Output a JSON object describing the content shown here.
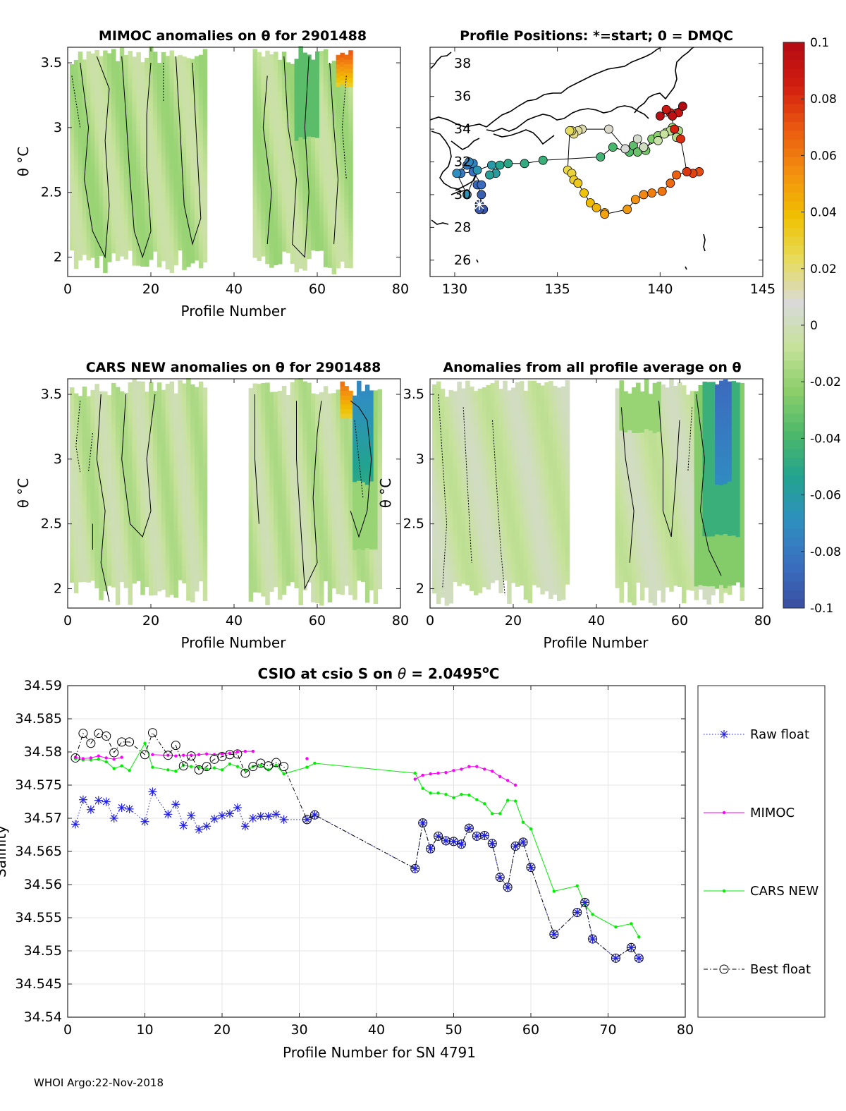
{
  "footer": "WHOI Argo:22-Nov-2018",
  "colors": {
    "raw": "#2020e0",
    "mimoc": "#ff00ff",
    "cars": "#00ee00",
    "best": "#000000",
    "colormap": [
      "#3b4fa0",
      "#3a6fc0",
      "#2f8fc0",
      "#22a38f",
      "#4db86a",
      "#8ccf6a",
      "#c6e29a",
      "#d9d9d9",
      "#e6dc5c",
      "#f0c000",
      "#f39010",
      "#ea5a10",
      "#d21e10",
      "#b40a14"
    ]
  },
  "chart_data": [
    {
      "id": "mimoc",
      "type": "heatmap",
      "title": "MIMOC anomalies on θ  for 2901488",
      "xlabel": "Profile Number",
      "ylabel": "θ °C",
      "xlim": [
        0,
        80
      ],
      "ylim": [
        1.85,
        3.62
      ],
      "xticks": [
        "0",
        "20",
        "40",
        "60",
        "80"
      ],
      "yticks": [
        "2",
        "2.5",
        "3",
        "3.5"
      ],
      "profile_ranges": [
        [
          1,
          33
        ],
        [
          45,
          68
        ]
      ]
    },
    {
      "id": "positions",
      "type": "scatter",
      "title": "Profile Positions: *=start; 0 = DMQC",
      "xlim": [
        128.8,
        145
      ],
      "ylim": [
        25,
        39
      ],
      "xticks": [
        "130",
        "135",
        "140",
        "145"
      ],
      "yticks": [
        "26",
        "28",
        "30",
        "32",
        "34",
        "36",
        "38"
      ],
      "lon": [
        131.2,
        131.4,
        131.2,
        131.3,
        131.1,
        131.3,
        130.9,
        130.3,
        130.6,
        130.9,
        130.7,
        130.1,
        130.6,
        131.1,
        131.8,
        132.0,
        131.7,
        132.2,
        132.6,
        133.4,
        134.3,
        137.1,
        137.7,
        138.5,
        138.7,
        138.9,
        139.3,
        139.6,
        139.9,
        140.3,
        140.6,
        140.9,
        140.8,
        140.5,
        140.2,
        139.9,
        139.2,
        139.2,
        138.9,
        138.3,
        137.5,
        136.2,
        136.0,
        135.8,
        135.7,
        135.6,
        135.5,
        135.7,
        135.8,
        136.0,
        136.3,
        136.6,
        136.9,
        137.3,
        137.3,
        138.4,
        138.8,
        139.2,
        139.6,
        140.1,
        140.5,
        140.8,
        141.3,
        141.9,
        141.6,
        141.3,
        141.0,
        140.7,
        140.5,
        140.3,
        140.9,
        140.6,
        140.0,
        141.1
      ],
      "lat": [
        29.4,
        29.1,
        29.1,
        30.0,
        30.6,
        30.6,
        31.4,
        31.3,
        31.8,
        31.9,
        32.0,
        31.3,
        30.0,
        31.5,
        31.8,
        31.3,
        31.2,
        31.8,
        31.9,
        31.9,
        32.1,
        32.3,
        32.9,
        32.6,
        33.0,
        32.6,
        32.7,
        33.4,
        33.6,
        33.8,
        34.1,
        33.9,
        33.5,
        33.9,
        33.7,
        33.3,
        32.9,
        32.9,
        33.4,
        32.8,
        34.0,
        34.0,
        33.9,
        33.7,
        33.9,
        33.9,
        31.5,
        31.3,
        30.9,
        30.7,
        30.1,
        29.5,
        29.2,
        28.9,
        28.8,
        29.1,
        29.7,
        30.0,
        30.1,
        30.2,
        30.7,
        31.2,
        31.4,
        31.4,
        31.3,
        31.4,
        33.4,
        34.0,
        35.0,
        35.2,
        35.0,
        34.8,
        34.8,
        35.4
      ],
      "start": [
        131.2,
        29.4
      ]
    },
    {
      "id": "cars",
      "type": "heatmap",
      "title": "CARS NEW anomalies on θ for 2901488",
      "xlabel": "Profile Number",
      "ylabel": "θ °C",
      "xlim": [
        0,
        80
      ],
      "ylim": [
        1.85,
        3.62
      ],
      "xticks": [
        "0",
        "20",
        "40",
        "60",
        "80"
      ],
      "yticks": [
        "2",
        "2.5",
        "3",
        "3.5"
      ],
      "profile_ranges": [
        [
          1,
          33
        ],
        [
          44,
          75
        ]
      ]
    },
    {
      "id": "allavg",
      "type": "heatmap",
      "title": "Anomalies from all profile average on θ",
      "xlabel": "Profile Number",
      "ylabel": "θ °C",
      "xlim": [
        0,
        80
      ],
      "ylim": [
        1.85,
        3.62
      ],
      "xticks": [
        "0",
        "20",
        "40",
        "60",
        "80"
      ],
      "yticks": [
        "2",
        "2.5",
        "3",
        "3.5"
      ],
      "profile_ranges": [
        [
          1,
          33
        ],
        [
          45,
          75
        ]
      ]
    },
    {
      "id": "colorbar",
      "type": "colorbar",
      "range": [
        -0.1,
        0.1
      ],
      "ticks": [
        "0.1",
        "0.08",
        "0.06",
        "0.04",
        "0.02",
        "0",
        "-0.02",
        "-0.04",
        "-0.06",
        "-0.08",
        "-0.1"
      ]
    },
    {
      "id": "csio",
      "type": "line",
      "title": "CSIO at csio S on θ = 2.0495°C",
      "xlabel": "Profile Number for SN 4791",
      "ylabel": "Salinity",
      "xlim": [
        0,
        80
      ],
      "ylim": [
        34.54,
        34.59
      ],
      "xticks": [
        "0",
        "10",
        "20",
        "30",
        "40",
        "50",
        "60",
        "70",
        "80"
      ],
      "yticks": [
        "34.54",
        "34.545",
        "34.55",
        "34.555",
        "34.56",
        "34.565",
        "34.57",
        "34.575",
        "34.58",
        "34.585",
        "34.59"
      ],
      "legend": [
        "Raw float",
        "MIMOC",
        "CARS NEW",
        "Best float"
      ],
      "legend_position": "outside-right",
      "series": [
        {
          "name": "Raw float",
          "x": [
            1,
            2,
            3,
            4,
            5,
            6,
            7,
            8,
            10,
            11,
            13,
            14,
            15,
            16,
            17,
            18,
            19,
            20,
            21,
            22,
            23,
            24,
            25,
            26,
            27,
            28,
            31,
            32,
            45,
            46,
            47,
            48,
            49,
            50,
            51,
            52,
            53,
            54,
            55,
            56,
            57,
            58,
            59,
            60,
            63,
            66,
            67,
            68,
            71,
            73,
            74
          ],
          "y": [
            34.5691,
            34.5728,
            34.5713,
            34.5727,
            34.5725,
            34.57,
            34.5716,
            34.5714,
            34.5695,
            34.574,
            34.5706,
            34.5721,
            34.5689,
            34.5704,
            34.5683,
            34.5688,
            34.5699,
            34.5704,
            34.5707,
            34.5716,
            34.5688,
            34.57,
            34.5703,
            34.5703,
            34.5706,
            34.5698,
            34.5698,
            34.5705,
            34.5624,
            34.5693,
            34.5654,
            34.5673,
            34.5666,
            34.5665,
            34.5661,
            34.5685,
            34.5673,
            34.5674,
            34.5662,
            34.5611,
            34.5596,
            34.5658,
            34.5664,
            34.5626,
            34.5525,
            34.5558,
            34.5573,
            34.5518,
            34.5489,
            34.5505,
            34.5489
          ]
        },
        {
          "name": "MIMOC",
          "x": [
            1,
            2,
            3,
            4,
            5,
            6,
            7,
            11,
            13,
            14,
            15,
            16,
            17,
            18,
            19,
            20,
            21,
            22,
            23,
            24,
            31,
            45,
            46,
            47,
            48,
            49,
            50,
            51,
            52,
            53,
            54,
            55,
            56,
            57,
            58
          ],
          "y": [
            34.5792,
            34.579,
            34.5791,
            34.5794,
            34.5791,
            34.5789,
            34.5792,
            34.5796,
            34.5795,
            34.5794,
            34.5795,
            34.5795,
            34.5796,
            34.5797,
            34.5796,
            34.5797,
            34.5798,
            34.58,
            34.5801,
            34.5801,
            34.579,
            34.5759,
            34.5765,
            34.5767,
            34.5768,
            34.5769,
            34.5772,
            34.5774,
            34.5778,
            34.5778,
            34.5774,
            34.5771,
            34.5763,
            34.5757,
            34.575
          ]
        },
        {
          "name": "CARS NEW",
          "x": [
            1,
            2,
            3,
            4,
            5,
            6,
            7,
            8,
            10,
            11,
            13,
            14,
            15,
            16,
            17,
            18,
            19,
            20,
            21,
            22,
            23,
            24,
            25,
            26,
            27,
            28,
            31,
            32,
            45,
            46,
            47,
            48,
            49,
            50,
            51,
            52,
            53,
            54,
            55,
            56,
            57,
            58,
            59,
            60,
            63,
            66,
            67,
            68,
            71,
            73,
            74
          ],
          "y": [
            34.579,
            34.5788,
            34.5788,
            34.5789,
            34.5785,
            34.5775,
            34.5779,
            34.5772,
            34.5813,
            34.5777,
            34.5773,
            34.5771,
            34.578,
            34.5778,
            34.5777,
            34.5774,
            34.5776,
            34.5773,
            34.5782,
            34.5778,
            34.5772,
            34.5778,
            34.578,
            34.5773,
            34.578,
            34.5767,
            34.5777,
            34.5783,
            34.5768,
            34.5745,
            34.5738,
            34.5738,
            34.5736,
            34.5731,
            34.5736,
            34.5735,
            34.5728,
            34.5722,
            34.5707,
            34.5707,
            34.5727,
            34.5726,
            34.5694,
            34.5684,
            34.559,
            34.5598,
            34.557,
            34.5555,
            34.5536,
            34.5541,
            34.5521
          ]
        },
        {
          "name": "Best float",
          "x": [
            1,
            2,
            3,
            4,
            5,
            6,
            7,
            8,
            10,
            11,
            13,
            14,
            15,
            16,
            17,
            18,
            19,
            20,
            21,
            22,
            23,
            24,
            25,
            26,
            27,
            28,
            31,
            32,
            45,
            46,
            47,
            48,
            49,
            50,
            51,
            52,
            53,
            54,
            55,
            56,
            57,
            58,
            59,
            60,
            63,
            66,
            67,
            68,
            71,
            73,
            74
          ],
          "y": [
            34.5791,
            34.5828,
            34.5813,
            34.5828,
            34.5824,
            34.5799,
            34.5815,
            34.5815,
            34.5796,
            34.5829,
            34.5795,
            34.581,
            34.5779,
            34.5794,
            34.5773,
            34.5778,
            34.5789,
            34.5793,
            34.5796,
            34.5797,
            34.5768,
            34.5778,
            34.5783,
            34.5779,
            34.5784,
            34.5778,
            34.5698,
            34.5705,
            34.5624,
            34.5693,
            34.5654,
            34.5673,
            34.5666,
            34.5665,
            34.5661,
            34.5685,
            34.5673,
            34.5674,
            34.5662,
            34.5611,
            34.5596,
            34.5658,
            34.5664,
            34.5626,
            34.5525,
            34.5558,
            34.5573,
            34.5518,
            34.5489,
            34.5505,
            34.5489
          ]
        }
      ]
    }
  ]
}
